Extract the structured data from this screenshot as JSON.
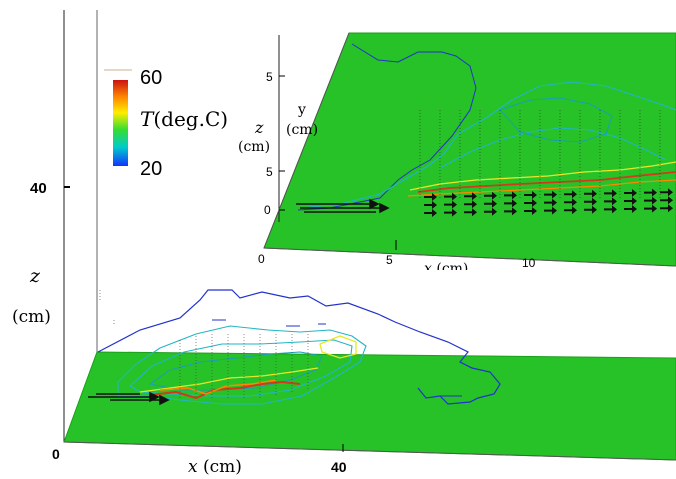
{
  "chart_data": [
    {
      "type": "heatmap",
      "panel": "main",
      "xlabel": "x (cm)",
      "ylabel": "z (cm)",
      "x_ticks": [
        "0",
        "40"
      ],
      "z_ticks": [
        "40"
      ],
      "colorbar": {
        "label": "T(deg.C)",
        "min_label": "60",
        "max_label": "20",
        "colors": [
          "#cc1111",
          "#ff8800",
          "#ffee00",
          "#33dd33",
          "#00cccc",
          "#1133ff"
        ]
      }
    },
    {
      "type": "heatmap",
      "panel": "inset",
      "xlabel": "x (cm)",
      "ylabel": "z (cm)",
      "y_axis_label": "y (cm)",
      "x_ticks": [
        "0",
        "5",
        "10"
      ],
      "z_ticks": [
        "0",
        "5",
        "5"
      ]
    }
  ],
  "colors": {
    "plane": "#27c227",
    "plane_edge": "#1aa01a",
    "contour_blue": "#2233cc",
    "contour_cyan": "#22b5c8",
    "contour_yellow": "#e8e82a",
    "contour_red": "#d23a1a",
    "vectors": "#111111"
  }
}
